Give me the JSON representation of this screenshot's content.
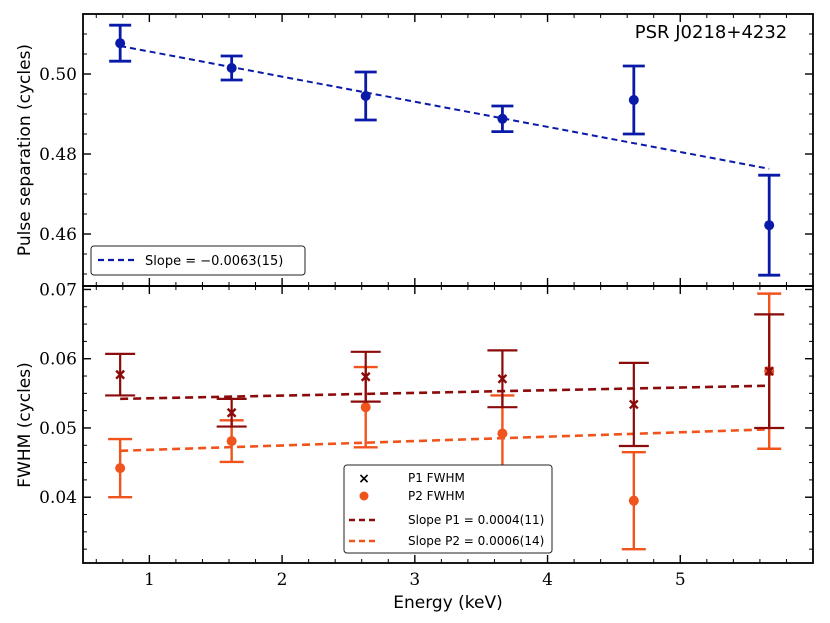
{
  "chart_data": [
    {
      "type": "scatter",
      "panel": "top",
      "annotation": "PSR J0218+4232",
      "ylabel": "Pulse separation (cycles)",
      "xlabel": "Energy (keV)",
      "xlim": [
        0.5,
        6.0
      ],
      "ylim": [
        0.447,
        0.515
      ],
      "yticks": [
        0.46,
        0.48,
        0.5
      ],
      "ytick_labels": [
        "0.46",
        "0.48",
        "0.50"
      ],
      "series": [
        {
          "name": "Pulse separation",
          "color": "#0a1aa8",
          "x": [
            0.78,
            1.62,
            2.63,
            3.66,
            4.65,
            5.67
          ],
          "y": [
            0.5077,
            0.5015,
            0.4945,
            0.4888,
            0.4935,
            0.4622
          ],
          "err": [
            0.0045,
            0.003,
            0.006,
            0.0032,
            0.0085,
            0.0125
          ]
        }
      ],
      "fit": {
        "x": [
          0.78,
          5.67
        ],
        "y": [
          0.507,
          0.4763
        ],
        "color": "#0a1aa8"
      },
      "legend": {
        "label": "Slope = −0.0063(15)",
        "position": "lower-left"
      }
    },
    {
      "type": "scatter",
      "panel": "bottom",
      "ylabel": "FWHM (cycles)",
      "xlabel": "Energy (keV)",
      "xlim": [
        0.5,
        6.0
      ],
      "ylim": [
        0.0305,
        0.0705
      ],
      "xticks": [
        1,
        2,
        3,
        4,
        5
      ],
      "xtick_labels": [
        "1",
        "2",
        "3",
        "4",
        "5"
      ],
      "yticks": [
        0.04,
        0.05,
        0.06,
        0.07
      ],
      "ytick_labels": [
        "0.04",
        "0.05",
        "0.06",
        "0.07"
      ],
      "series": [
        {
          "name": "P1 FWHM",
          "marker": "x",
          "color": "#8b0a0a",
          "x": [
            0.78,
            1.62,
            2.63,
            3.66,
            4.65,
            5.67
          ],
          "y": [
            0.0577,
            0.0522,
            0.0574,
            0.0571,
            0.0534,
            0.0582
          ],
          "err": [
            0.003,
            0.002,
            0.0036,
            0.0041,
            0.006,
            0.0082
          ]
        },
        {
          "name": "P2 FWHM",
          "marker": "o",
          "color": "#f0531c",
          "x": [
            0.78,
            1.62,
            2.63,
            3.66,
            4.65,
            5.67
          ],
          "y": [
            0.0442,
            0.0481,
            0.053,
            0.0492,
            0.0395,
            0.0582
          ],
          "err": [
            0.0042,
            0.003,
            0.0058,
            0.0055,
            0.007,
            0.0112
          ]
        }
      ],
      "fits": [
        {
          "name": "Slope P1 = 0.0004(11)",
          "x": [
            0.78,
            5.67
          ],
          "y": [
            0.0542,
            0.0561
          ],
          "color": "#8b0a0a"
        },
        {
          "name": "Slope P2 = 0.0006(14)",
          "x": [
            0.78,
            5.67
          ],
          "y": [
            0.0467,
            0.0498
          ],
          "color": "#f0531c"
        }
      ],
      "legend": {
        "labels": [
          "P1 FWHM",
          "P2 FWHM",
          "Slope P1 = 0.0004(11)",
          "Slope P2 = 0.0006(14)"
        ],
        "position": "lower-center"
      }
    }
  ]
}
